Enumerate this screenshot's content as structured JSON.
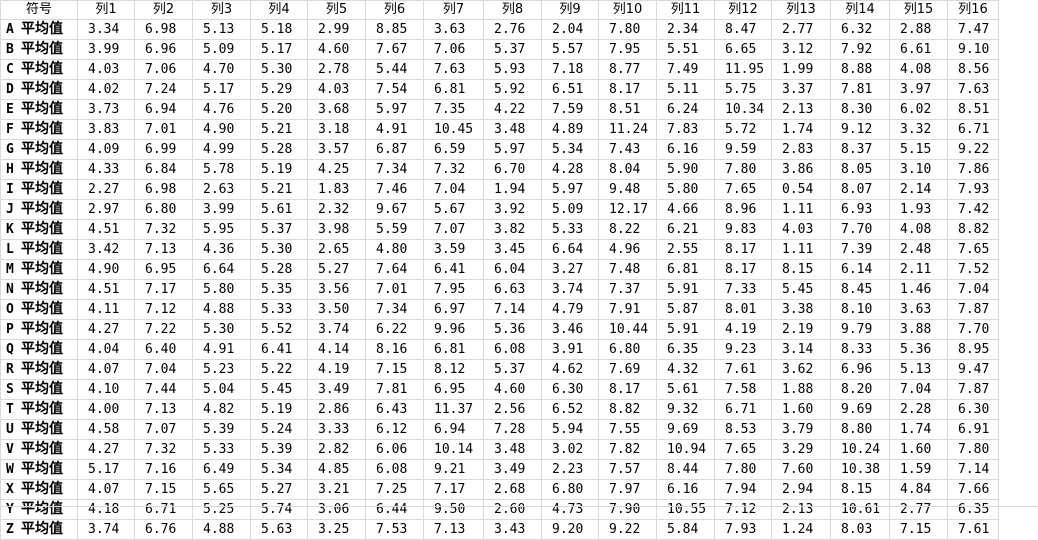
{
  "header": {
    "key_col": "符号",
    "cols": [
      "列1",
      "列2",
      "列3",
      "列4",
      "列5",
      "列6",
      "列7",
      "列8",
      "列9",
      "列10",
      "列11",
      "列12",
      "列13",
      "列14",
      "列15",
      "列16"
    ]
  },
  "rows": [
    {
      "code": "A",
      "label": "平均值",
      "values": [
        "3.34",
        "6.98",
        "5.13",
        "5.18",
        "2.99",
        "8.85",
        "3.63",
        "2.76",
        "2.04",
        "7.80",
        "2.34",
        "8.47",
        "2.77",
        "6.32",
        "2.88",
        "7.47"
      ]
    },
    {
      "code": "B",
      "label": "平均值",
      "values": [
        "3.99",
        "6.96",
        "5.09",
        "5.17",
        "4.60",
        "7.67",
        "7.06",
        "5.37",
        "5.57",
        "7.95",
        "5.51",
        "6.65",
        "3.12",
        "7.92",
        "6.61",
        "9.10"
      ]
    },
    {
      "code": "C",
      "label": "平均值",
      "values": [
        "4.03",
        "7.06",
        "4.70",
        "5.30",
        "2.78",
        "5.44",
        "7.63",
        "5.93",
        "7.18",
        "8.77",
        "7.49",
        "11.95",
        "1.99",
        "8.88",
        "4.08",
        "8.56"
      ]
    },
    {
      "code": "D",
      "label": "平均值",
      "values": [
        "4.02",
        "7.24",
        "5.17",
        "5.29",
        "4.03",
        "7.54",
        "6.81",
        "5.92",
        "6.51",
        "8.17",
        "5.11",
        "5.75",
        "3.37",
        "7.81",
        "3.97",
        "7.63"
      ]
    },
    {
      "code": "E",
      "label": "平均值",
      "values": [
        "3.73",
        "6.94",
        "4.76",
        "5.20",
        "3.68",
        "5.97",
        "7.35",
        "4.22",
        "7.59",
        "8.51",
        "6.24",
        "10.34",
        "2.13",
        "8.30",
        "6.02",
        "8.51"
      ]
    },
    {
      "code": "F",
      "label": "平均值",
      "values": [
        "3.83",
        "7.01",
        "4.90",
        "5.21",
        "3.18",
        "4.91",
        "10.45",
        "3.48",
        "4.89",
        "11.24",
        "7.83",
        "5.72",
        "1.74",
        "9.12",
        "3.32",
        "6.71"
      ]
    },
    {
      "code": "G",
      "label": "平均值",
      "values": [
        "4.09",
        "6.99",
        "4.99",
        "5.28",
        "3.57",
        "6.87",
        "6.59",
        "5.97",
        "5.34",
        "7.43",
        "6.16",
        "9.59",
        "2.83",
        "8.37",
        "5.15",
        "9.22"
      ]
    },
    {
      "code": "H",
      "label": "平均值",
      "values": [
        "4.33",
        "6.84",
        "5.78",
        "5.19",
        "4.25",
        "7.34",
        "7.32",
        "6.70",
        "4.28",
        "8.04",
        "5.90",
        "7.80",
        "3.86",
        "8.05",
        "3.10",
        "7.86"
      ]
    },
    {
      "code": "I",
      "label": "平均值",
      "values": [
        "2.27",
        "6.98",
        "2.63",
        "5.21",
        "1.83",
        "7.46",
        "7.04",
        "1.94",
        "5.97",
        "9.48",
        "5.80",
        "7.65",
        "0.54",
        "8.07",
        "2.14",
        "7.93"
      ]
    },
    {
      "code": "J",
      "label": "平均值",
      "values": [
        "2.97",
        "6.80",
        "3.99",
        "5.61",
        "2.32",
        "9.67",
        "5.67",
        "3.92",
        "5.09",
        "12.17",
        "4.66",
        "8.96",
        "1.11",
        "6.93",
        "1.93",
        "7.42"
      ]
    },
    {
      "code": "K",
      "label": "平均值",
      "values": [
        "4.51",
        "7.32",
        "5.95",
        "5.37",
        "3.98",
        "5.59",
        "7.07",
        "3.82",
        "5.33",
        "8.22",
        "6.21",
        "9.83",
        "4.03",
        "7.70",
        "4.08",
        "8.82"
      ]
    },
    {
      "code": "L",
      "label": "平均值",
      "values": [
        "3.42",
        "7.13",
        "4.36",
        "5.30",
        "2.65",
        "4.80",
        "3.59",
        "3.45",
        "6.64",
        "4.96",
        "2.55",
        "8.17",
        "1.11",
        "7.39",
        "2.48",
        "7.65"
      ]
    },
    {
      "code": "M",
      "label": "平均值",
      "values": [
        "4.90",
        "6.95",
        "6.64",
        "5.28",
        "5.27",
        "7.64",
        "6.41",
        "6.04",
        "3.27",
        "7.48",
        "6.81",
        "8.17",
        "8.15",
        "6.14",
        "2.11",
        "7.52"
      ]
    },
    {
      "code": "N",
      "label": "平均值",
      "values": [
        "4.51",
        "7.17",
        "5.80",
        "5.35",
        "3.56",
        "7.01",
        "7.95",
        "6.63",
        "3.74",
        "7.37",
        "5.91",
        "7.33",
        "5.45",
        "8.45",
        "1.46",
        "7.04"
      ]
    },
    {
      "code": "O",
      "label": "平均值",
      "values": [
        "4.11",
        "7.12",
        "4.88",
        "5.33",
        "3.50",
        "7.34",
        "6.97",
        "7.14",
        "4.79",
        "7.91",
        "5.87",
        "8.01",
        "3.38",
        "8.10",
        "3.63",
        "7.87"
      ]
    },
    {
      "code": "P",
      "label": "平均值",
      "values": [
        "4.27",
        "7.22",
        "5.30",
        "5.52",
        "3.74",
        "6.22",
        "9.96",
        "5.36",
        "3.46",
        "10.44",
        "5.91",
        "4.19",
        "2.19",
        "9.79",
        "3.88",
        "7.70"
      ]
    },
    {
      "code": "Q",
      "label": "平均值",
      "values": [
        "4.04",
        "6.40",
        "4.91",
        "6.41",
        "4.14",
        "8.16",
        "6.81",
        "6.08",
        "3.91",
        "6.80",
        "6.35",
        "9.23",
        "3.14",
        "8.33",
        "5.36",
        "8.95"
      ]
    },
    {
      "code": "R",
      "label": "平均值",
      "values": [
        "4.07",
        "7.04",
        "5.23",
        "5.22",
        "4.19",
        "7.15",
        "8.12",
        "5.37",
        "4.62",
        "7.69",
        "4.32",
        "7.61",
        "3.62",
        "6.96",
        "5.13",
        "9.47"
      ]
    },
    {
      "code": "S",
      "label": "平均值",
      "values": [
        "4.10",
        "7.44",
        "5.04",
        "5.45",
        "3.49",
        "7.81",
        "6.95",
        "4.60",
        "6.30",
        "8.17",
        "5.61",
        "7.58",
        "1.88",
        "8.20",
        "7.04",
        "7.87"
      ]
    },
    {
      "code": "T",
      "label": "平均值",
      "values": [
        "4.00",
        "7.13",
        "4.82",
        "5.19",
        "2.86",
        "6.43",
        "11.37",
        "2.56",
        "6.52",
        "8.82",
        "9.32",
        "6.71",
        "1.60",
        "9.69",
        "2.28",
        "6.30"
      ]
    },
    {
      "code": "U",
      "label": "平均值",
      "values": [
        "4.58",
        "7.07",
        "5.39",
        "5.24",
        "3.33",
        "6.12",
        "6.94",
        "7.28",
        "5.94",
        "7.55",
        "9.69",
        "8.53",
        "3.79",
        "8.80",
        "1.74",
        "6.91"
      ]
    },
    {
      "code": "V",
      "label": "平均值",
      "values": [
        "4.27",
        "7.32",
        "5.33",
        "5.39",
        "2.82",
        "6.06",
        "10.14",
        "3.48",
        "3.02",
        "7.82",
        "10.94",
        "7.65",
        "3.29",
        "10.24",
        "1.60",
        "7.80"
      ]
    },
    {
      "code": "W",
      "label": "平均值",
      "values": [
        "5.17",
        "7.16",
        "6.49",
        "5.34",
        "4.85",
        "6.08",
        "9.21",
        "3.49",
        "2.23",
        "7.57",
        "8.44",
        "7.80",
        "7.60",
        "10.38",
        "1.59",
        "7.14"
      ]
    },
    {
      "code": "X",
      "label": "平均值",
      "values": [
        "4.07",
        "7.15",
        "5.65",
        "5.27",
        "3.21",
        "7.25",
        "7.17",
        "2.68",
        "6.80",
        "7.97",
        "6.16",
        "7.94",
        "2.94",
        "8.15",
        "4.84",
        "7.66"
      ]
    },
    {
      "code": "Y",
      "label": "平均值",
      "values": [
        "4.18",
        "6.71",
        "5.25",
        "5.74",
        "3.06",
        "6.44",
        "9.50",
        "2.60",
        "4.73",
        "7.90",
        "10.55",
        "7.12",
        "2.13",
        "10.61",
        "2.77",
        "6.35"
      ]
    },
    {
      "code": "Z",
      "label": "平均值",
      "values": [
        "3.74",
        "6.76",
        "4.88",
        "5.63",
        "3.25",
        "7.53",
        "7.13",
        "3.43",
        "9.20",
        "9.22",
        "5.84",
        "7.93",
        "1.24",
        "8.03",
        "7.15",
        "7.61"
      ]
    }
  ],
  "colors": {
    "grid": "#d9d9d9",
    "text": "#000000",
    "background": "#ffffff"
  }
}
